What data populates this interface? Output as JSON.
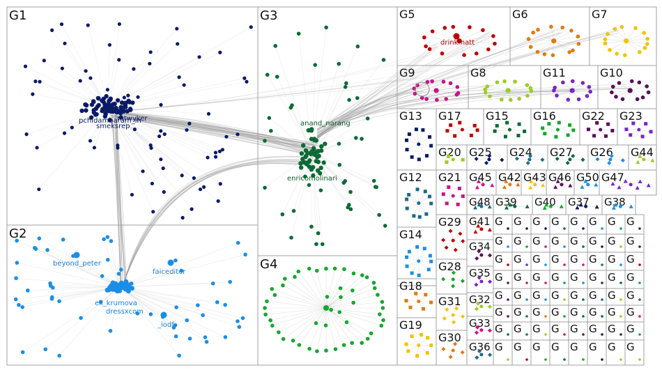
{
  "groups": [
    {
      "id": "g1",
      "label": "G1"
    },
    {
      "id": "g2",
      "label": "G2"
    },
    {
      "id": "g3",
      "label": "G3"
    },
    {
      "id": "g4",
      "label": "G4"
    },
    {
      "id": "g5",
      "label": "G5"
    },
    {
      "id": "g6",
      "label": "G6"
    },
    {
      "id": "g7",
      "label": "G7"
    },
    {
      "id": "g9",
      "label": "G9"
    },
    {
      "id": "g8",
      "label": "G8"
    },
    {
      "id": "g11",
      "label": "G11"
    },
    {
      "id": "g10",
      "label": "G10"
    },
    {
      "id": "g13",
      "label": "G13"
    },
    {
      "id": "g17",
      "label": "G17"
    },
    {
      "id": "g15",
      "label": "G15"
    },
    {
      "id": "g16",
      "label": "G16"
    },
    {
      "id": "g22",
      "label": "G22"
    },
    {
      "id": "g23",
      "label": "G23"
    },
    {
      "id": "g20",
      "label": "G20"
    },
    {
      "id": "g25",
      "label": "G25"
    },
    {
      "id": "g24",
      "label": "G24"
    },
    {
      "id": "g27",
      "label": "G27"
    },
    {
      "id": "g26",
      "label": "G26"
    },
    {
      "id": "g44",
      "label": "G44"
    },
    {
      "id": "g12",
      "label": "G12"
    },
    {
      "id": "g45",
      "label": "G45"
    },
    {
      "id": "g42",
      "label": "G42"
    },
    {
      "id": "g43",
      "label": "G43"
    },
    {
      "id": "g46",
      "label": "G46"
    },
    {
      "id": "g50",
      "label": "G50"
    },
    {
      "id": "g47",
      "label": "G47"
    },
    {
      "id": "g21",
      "label": "G21"
    },
    {
      "id": "g48",
      "label": "G48"
    },
    {
      "id": "g39",
      "label": "G39"
    },
    {
      "id": "g40",
      "label": "G40"
    },
    {
      "id": "g37",
      "label": "G37"
    },
    {
      "id": "g38",
      "label": "G38"
    },
    {
      "id": "g41",
      "label": "G41"
    },
    {
      "id": "g14",
      "label": "G14"
    },
    {
      "id": "g29",
      "label": "G29"
    },
    {
      "id": "g34",
      "label": "G34"
    },
    {
      "id": "g35",
      "label": "G35"
    },
    {
      "id": "g28",
      "label": "G28"
    },
    {
      "id": "g18",
      "label": "G18"
    },
    {
      "id": "g32",
      "label": "G32"
    },
    {
      "id": "g31",
      "label": "G31"
    },
    {
      "id": "g33",
      "label": "G33"
    },
    {
      "id": "g19",
      "label": "G19"
    },
    {
      "id": "g30",
      "label": "G30"
    },
    {
      "id": "g36",
      "label": "G36"
    }
  ],
  "small_group_label": "G",
  "node_labels": [
    {
      "id": "pchidambaram",
      "text": "pchidambaram_in",
      "group": "g1",
      "color": "#0a1a66"
    },
    {
      "id": "rykeeper",
      "text": "mtwyker",
      "group": "g1",
      "color": "#0a1a66"
    },
    {
      "id": "smeksrep",
      "text": "smeksrep",
      "group": "g1",
      "color": "#0a1a66"
    },
    {
      "id": "beyond_peter",
      "text": "beyond_peter",
      "group": "g2",
      "color": "#1a7fd4"
    },
    {
      "id": "faiceditor",
      "text": "faiceditor",
      "group": "g2",
      "color": "#1a7fd4"
    },
    {
      "id": "eli_krumova",
      "text": "eli_krumova",
      "group": "g2",
      "color": "#1a7fd4"
    },
    {
      "id": "dressxcom",
      "text": "dressxcom",
      "group": "g2",
      "color": "#1a7fd4"
    },
    {
      "id": "iodf",
      "text": "_iodf",
      "group": "g2",
      "color": "#1a7fd4"
    },
    {
      "id": "anand_narang",
      "text": "anand_narang",
      "group": "g3",
      "color": "#0b5a2e"
    },
    {
      "id": "enricomolinari",
      "text": "enricomolinari",
      "group": "g3",
      "color": "#0b5a2e"
    },
    {
      "id": "drinkmatt",
      "text": "drinkmatt",
      "group": "g5",
      "color": "#b00000"
    }
  ],
  "colors": {
    "g1": "#0a1a66",
    "g2": "#1a8ee6",
    "g3": "#0b6b35",
    "g4": "#14a82e",
    "g5": "#c00000",
    "g6": "#e07a10",
    "g7": "#f2c300",
    "g8": "#9ccc22",
    "g9": "#cc1188",
    "g10": "#5a0e5a",
    "g11": "#7a22cc",
    "g12": "#1a6a8a",
    "g13": "#0a1a66",
    "g14": "#1a8ee6",
    "g15": "#0b6b35",
    "g16": "#14a82e",
    "g17": "#c00000",
    "g18": "#e07a10",
    "g19": "#f2c300",
    "g20": "#9ccc22",
    "g21": "#cc1188",
    "g22": "#5a0e5a",
    "g23": "#7a22cc",
    "g24": "#1a6a8a",
    "g25": "#0a1a66",
    "g26": "#1a8ee6",
    "g27": "#0b6b35",
    "g28": "#14a82e",
    "g29": "#c00000",
    "g30": "#e07a10",
    "g31": "#f2c300",
    "g32": "#9ccc22",
    "g33": "#cc1188",
    "g34": "#5a0e5a",
    "g35": "#7a22cc",
    "g36": "#1a6a8a",
    "g37": "#0a1a66",
    "g38": "#1a8ee6",
    "g39": "#0b6b35",
    "g40": "#14a82e",
    "g41": "#c00000",
    "g42": "#e07a10",
    "g43": "#f2c300",
    "g44": "#9ccc22",
    "g45": "#cc1188",
    "g46": "#5a0e5a",
    "g47": "#7a22cc",
    "g48": "#1a6a8a",
    "g50": "#1a8ee6",
    "border": "#a0a0a0",
    "edge": "#9a9a9a"
  }
}
